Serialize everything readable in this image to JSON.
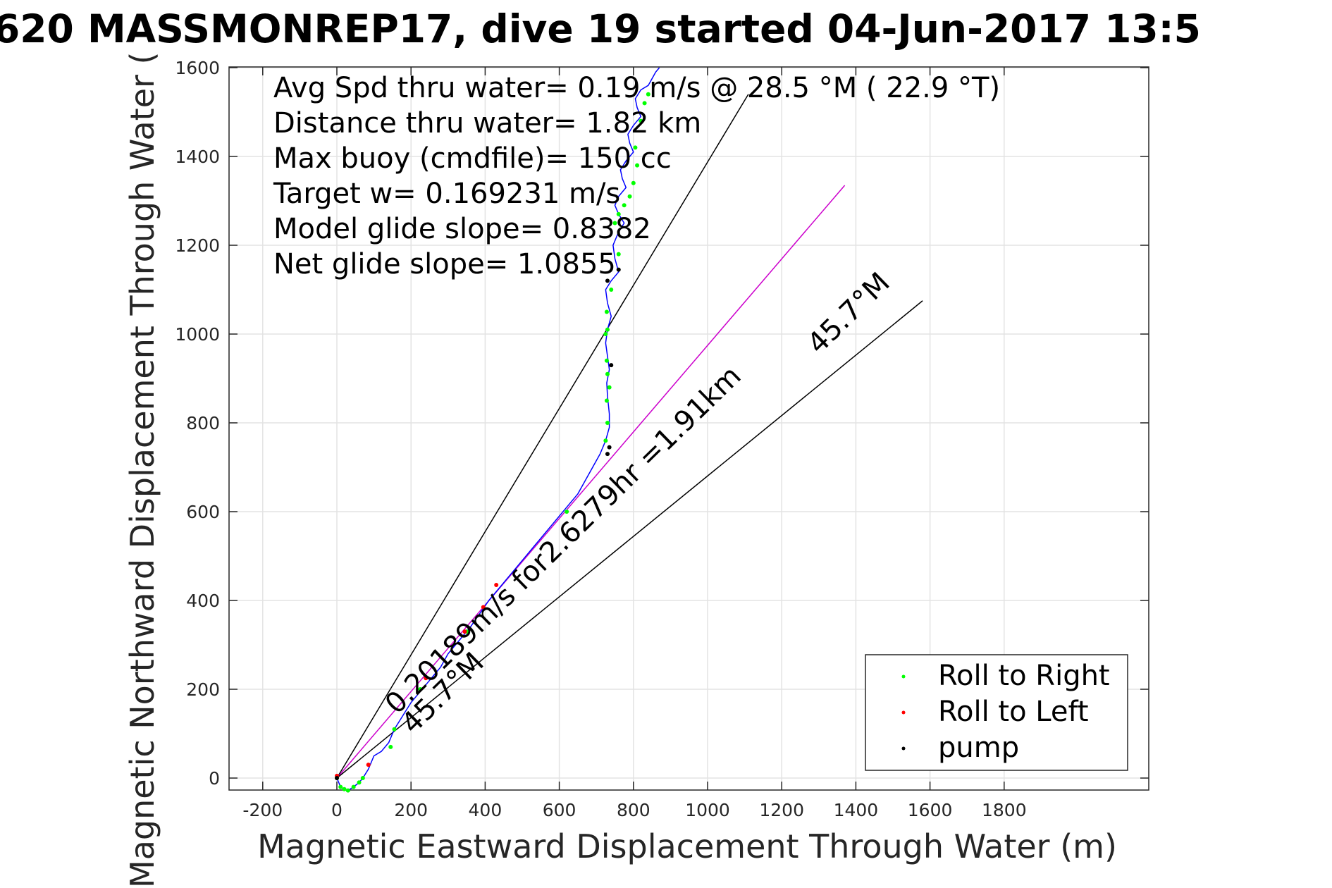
{
  "chart_data": {
    "type": "scatter",
    "title": "620 MASSMONREP17, dive 19 started 04-Jun-2017 13:5",
    "xlabel": "Magnetic Eastward Displacement Through Water (m)",
    "ylabel": "Magnetic Northward Displacement Through Water (",
    "xlim": [
      -240,
      1810
    ],
    "ylim": [
      -30,
      1600
    ],
    "xticks": [
      -200,
      0,
      200,
      400,
      600,
      800,
      1000,
      1200,
      1400,
      1600,
      1800
    ],
    "yticks": [
      0,
      200,
      400,
      600,
      800,
      1000,
      1200,
      1400,
      1600
    ],
    "grid": true,
    "legend_position": "bottom-right",
    "info_lines": [
      "Avg Spd thru water=  0.19 m/s @  28.5 °M ( 22.9 °T)",
      "Distance thru water=  1.82 km",
      "Max buoy (cmdfile)= 150 cc",
      "Target w= 0.169231 m/s",
      "Model glide slope= 0.8382",
      "Net glide slope= 1.0855"
    ],
    "annotations": {
      "current_vector": "0.20189m/s for2.6279hr =1.91km",
      "heading_upper": "45.7°M",
      "heading_lower": "45.7°M"
    },
    "reference_lines": [
      {
        "name": "upper-heading-line",
        "from": [
          0,
          0
        ],
        "to": [
          1110,
          1540
        ],
        "color": "#000000"
      },
      {
        "name": "current-vector-line",
        "from": [
          0,
          0
        ],
        "to": [
          1370,
          1335
        ],
        "color": "#cc00cc"
      },
      {
        "name": "lower-heading-line",
        "from": [
          0,
          0
        ],
        "to": [
          1580,
          1075
        ],
        "color": "#000000"
      }
    ],
    "series": [
      {
        "name": "track",
        "color": "#0000ff",
        "x": [
          0,
          10,
          20,
          30,
          45,
          60,
          70,
          85,
          100,
          120,
          140,
          155,
          170,
          185,
          200,
          220,
          240,
          260,
          280,
          300,
          320,
          340,
          360,
          385,
          410,
          440,
          470,
          500,
          530,
          560,
          590,
          620,
          650,
          670,
          690,
          710,
          725,
          735,
          735,
          730,
          728,
          735,
          730,
          725,
          730,
          740,
          730,
          725,
          740,
          760,
          750,
          745,
          760,
          775,
          760,
          750,
          760,
          780,
          770,
          765,
          780,
          800,
          790,
          785,
          800,
          820,
          810,
          805,
          820,
          840,
          850,
          860,
          870
        ],
        "y": [
          0,
          -20,
          -25,
          -28,
          -20,
          -10,
          0,
          20,
          50,
          60,
          80,
          110,
          130,
          150,
          170,
          190,
          210,
          230,
          250,
          280,
          300,
          320,
          340,
          370,
          400,
          430,
          460,
          490,
          520,
          550,
          580,
          610,
          640,
          670,
          700,
          730,
          760,
          790,
          820,
          860,
          890,
          920,
          950,
          980,
          1010,
          1040,
          1070,
          1100,
          1120,
          1140,
          1170,
          1200,
          1230,
          1250,
          1270,
          1290,
          1310,
          1330,
          1350,
          1370,
          1390,
          1410,
          1430,
          1450,
          1470,
          1490,
          1510,
          1530,
          1550,
          1560,
          1575,
          1590,
          1600
        ]
      },
      {
        "name": "Roll to Right",
        "color": "#00ff00",
        "x": [
          0,
          10,
          20,
          30,
          45,
          60,
          70,
          145,
          155,
          225,
          350,
          620,
          725,
          730,
          728,
          735,
          730,
          728,
          725,
          730,
          728,
          740,
          760,
          750,
          760,
          775,
          790,
          800,
          810,
          805,
          820,
          830,
          840
        ],
        "y": [
          0,
          -20,
          -25,
          -28,
          -20,
          -10,
          0,
          70,
          110,
          200,
          330,
          600,
          760,
          800,
          850,
          880,
          910,
          940,
          1000,
          1010,
          1050,
          1100,
          1180,
          1250,
          1270,
          1290,
          1310,
          1340,
          1380,
          1420,
          1480,
          1520,
          1540
        ]
      },
      {
        "name": "Roll to Left",
        "color": "#ff0000",
        "x": [
          0,
          85,
          240,
          345,
          395,
          430
        ],
        "y": [
          5,
          30,
          225,
          330,
          385,
          435
        ]
      },
      {
        "name": "pump",
        "color": "#000000",
        "x": [
          0,
          730,
          735,
          740,
          730,
          760
        ],
        "y": [
          0,
          730,
          745,
          930,
          1120,
          1145
        ]
      }
    ]
  }
}
